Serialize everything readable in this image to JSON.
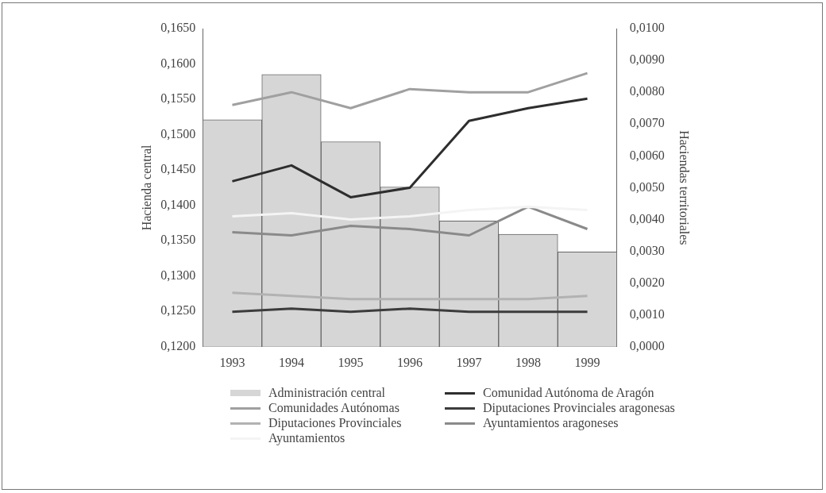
{
  "chart_data": {
    "type": "bar",
    "ylabel": "Hacienda central",
    "y2label": "Haciendas territoriales",
    "categories": [
      "1993",
      "1994",
      "1995",
      "1996",
      "1997",
      "1998",
      "1999"
    ],
    "series": [
      {
        "name": "Administración central",
        "color": "#d6d6d6",
        "values": [
          0.1521,
          0.1585,
          0.149,
          0.1426,
          0.1378,
          0.1359,
          0.1334
        ]
      },
      {
        "name": "Comunidades Autónomas",
        "type": "line",
        "axis": "y2",
        "color": "#a0a0a0",
        "values": [
          0.0076,
          0.008,
          0.0075,
          0.0081,
          0.008,
          0.008,
          0.0086
        ]
      },
      {
        "name": "Diputaciones Provinciales",
        "type": "line",
        "axis": "y2",
        "color": "#b2b2b2",
        "values": [
          0.0017,
          0.0016,
          0.0015,
          0.0015,
          0.0015,
          0.0015,
          0.0016
        ]
      },
      {
        "name": "Ayuntamientos",
        "type": "line",
        "axis": "y2",
        "color": "#f4f4f4",
        "values": [
          0.0041,
          0.0042,
          0.004,
          0.0041,
          0.0043,
          0.0044,
          0.0043
        ]
      },
      {
        "name": "Comunidad Autónoma de Aragón",
        "type": "line",
        "axis": "y2",
        "color": "#2e2e2e",
        "values": [
          0.0052,
          0.0057,
          0.0047,
          0.005,
          0.0071,
          0.0075,
          0.0078
        ]
      },
      {
        "name": "Diputaciones Provinciales aragonesas",
        "type": "line",
        "axis": "y2",
        "color": "#3c3c3c",
        "values": [
          0.0011,
          0.0012,
          0.0011,
          0.0012,
          0.0011,
          0.0011,
          0.0011
        ]
      },
      {
        "name": "Ayuntamientos aragoneses",
        "type": "line",
        "axis": "y2",
        "color": "#8a8a8a",
        "values": [
          0.0036,
          0.0035,
          0.0038,
          0.0037,
          0.0035,
          0.0044,
          0.0037
        ]
      }
    ],
    "ylim": [
      0.12,
      0.165
    ],
    "yticks": [
      {
        "value": 0.12,
        "label": "0,1200"
      },
      {
        "value": 0.125,
        "label": "0,1250"
      },
      {
        "value": 0.13,
        "label": "0,1300"
      },
      {
        "value": 0.135,
        "label": "0,1350"
      },
      {
        "value": 0.14,
        "label": "0,1400"
      },
      {
        "value": 0.145,
        "label": "0,1450"
      },
      {
        "value": 0.15,
        "label": "0,1500"
      },
      {
        "value": 0.155,
        "label": "0,1550"
      },
      {
        "value": 0.16,
        "label": "0,1600"
      },
      {
        "value": 0.165,
        "label": "0,1650"
      }
    ],
    "y2lim": [
      0,
      0.01
    ],
    "y2ticks": [
      {
        "value": 0,
        "label": "0,0000"
      },
      {
        "value": 0.001,
        "label": "0,0010"
      },
      {
        "value": 0.002,
        "label": "0,0020"
      },
      {
        "value": 0.003,
        "label": "0,0030"
      },
      {
        "value": 0.004,
        "label": "0,0040"
      },
      {
        "value": 0.005,
        "label": "0,0050"
      },
      {
        "value": 0.006,
        "label": "0,0060"
      },
      {
        "value": 0.007,
        "label": "0,0070"
      },
      {
        "value": 0.008,
        "label": "0,0080"
      },
      {
        "value": 0.009,
        "label": "0,0090"
      },
      {
        "value": 0.01,
        "label": "0,0100"
      }
    ],
    "grid": false,
    "legend": "bottom",
    "marker": "none",
    "line_style": "solid"
  }
}
